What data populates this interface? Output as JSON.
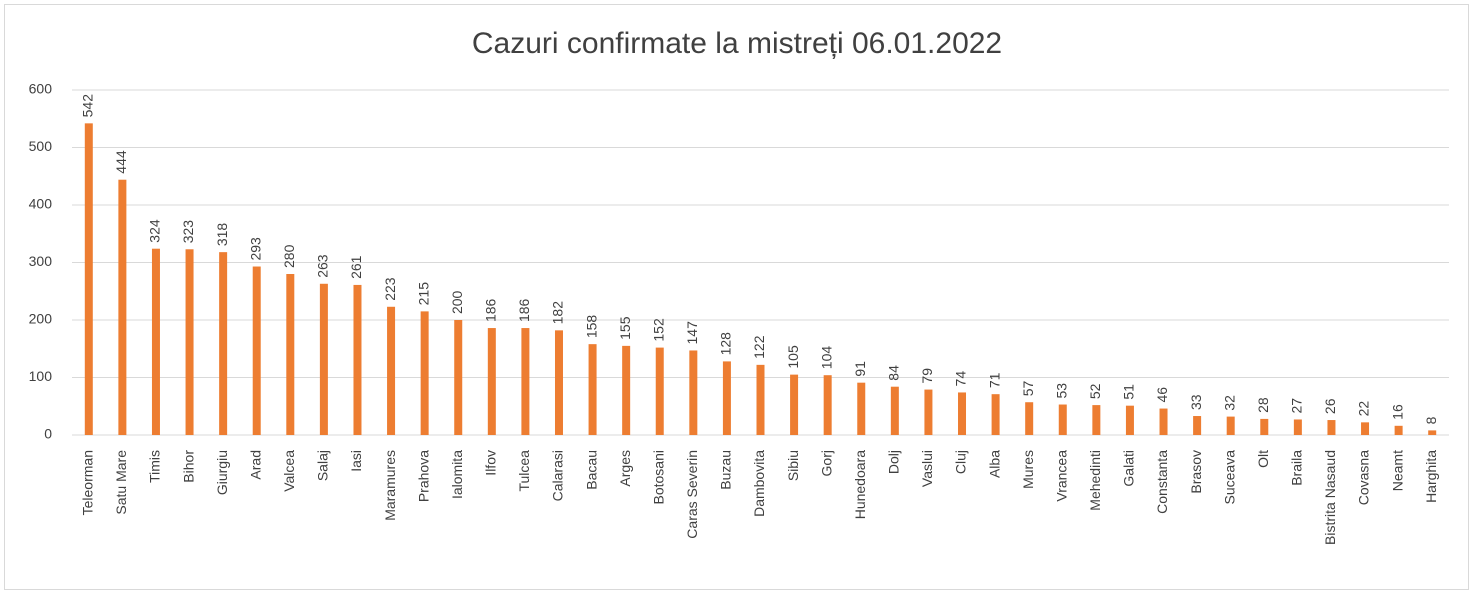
{
  "chart_data": {
    "type": "bar",
    "title": "Cazuri confirmate la mistreți 06.01.2022",
    "categories": [
      "Teleorman",
      "Satu Mare",
      "Timis",
      "Bihor",
      "Giurgiu",
      "Arad",
      "Valcea",
      "Salaj",
      "Iasi",
      "Maramures",
      "Prahova",
      "Ialomita",
      "Ilfov",
      "Tulcea",
      "Calarasi",
      "Bacau",
      "Arges",
      "Botosani",
      "Caras Severin",
      "Buzau",
      "Dambovita",
      "Sibiu",
      "Gorj",
      "Hunedoara",
      "Dolj",
      "Vaslui",
      "Cluj",
      "Alba",
      "Mures",
      "Vrancea",
      "Mehedinti",
      "Galati",
      "Constanta",
      "Brasov",
      "Suceava",
      "Olt",
      "Braila",
      "Bistrita Nasaud",
      "Covasna",
      "Neamt",
      "Harghita"
    ],
    "values": [
      542,
      444,
      324,
      323,
      318,
      293,
      280,
      263,
      261,
      223,
      215,
      200,
      186,
      186,
      182,
      158,
      155,
      152,
      147,
      128,
      122,
      105,
      104,
      91,
      84,
      79,
      74,
      71,
      57,
      53,
      52,
      51,
      46,
      33,
      32,
      28,
      27,
      26,
      22,
      16,
      8
    ],
    "color": "#ed7d31",
    "ylim": [
      0,
      600
    ],
    "yticks": [
      0,
      100,
      200,
      300,
      400,
      500,
      600
    ],
    "grid": true
  }
}
